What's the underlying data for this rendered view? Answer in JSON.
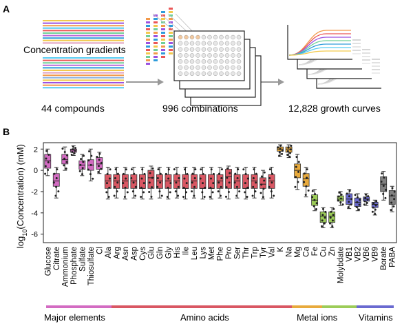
{
  "panel_a": {
    "letter": "A",
    "gradient_label": "Concentration gradients",
    "steps": [
      "44 compounds",
      "996 combinations",
      "12,828 growth curves"
    ]
  },
  "panel_b": {
    "letter": "B",
    "ylabel_main": "log",
    "ylabel_sub": "10",
    "ylabel_rest": "(Concentration) (mM)"
  },
  "colors": {
    "major": "#d36bc2",
    "amino": "#d95763",
    "metal_orange": "#e8aa3c",
    "metal_green": "#9ccc58",
    "vitamin": "#6a6ad0",
    "other": "#808080"
  },
  "groups": [
    {
      "label": "Major elements",
      "color": "#d36bc2"
    },
    {
      "label": "Amino acids",
      "color": "#d95763"
    },
    {
      "label": "Metal ions",
      "color": "#e8aa3c"
    },
    {
      "label": "Vitamins",
      "color": "#6a6ad0"
    }
  ],
  "chart_data": {
    "type": "box",
    "ylabel": "log10(Concentration) (mM)",
    "ylim": [
      -6.8,
      2.6
    ],
    "yticks": [
      -6,
      -4,
      -2,
      0,
      2
    ],
    "series": [
      {
        "name": "Glucose",
        "q1": 0.2,
        "median": 0.9,
        "q3": 1.5,
        "wl": -0.5,
        "wh": 2.0,
        "color": "#d36bc2"
      },
      {
        "name": "Citrate",
        "q1": -1.5,
        "median": -1.0,
        "q3": -0.3,
        "wl": -2.6,
        "wh": 0.3,
        "color": "#d36bc2"
      },
      {
        "name": "Ammonium",
        "q1": 0.6,
        "median": 1.0,
        "q3": 1.5,
        "wl": 0.0,
        "wh": 2.2,
        "color": "#d36bc2"
      },
      {
        "name": "Phosphate",
        "q1": 1.7,
        "median": 1.9,
        "q3": 2.0,
        "wl": 1.4,
        "wh": 2.3,
        "color": "#d36bc2"
      },
      {
        "name": "Sulfate",
        "q1": 0.1,
        "median": 0.5,
        "q3": 0.9,
        "wl": -0.5,
        "wh": 1.5,
        "color": "#d36bc2"
      },
      {
        "name": "Thiosulfate",
        "q1": 0.0,
        "median": 0.5,
        "q3": 1.0,
        "wl": -1.0,
        "wh": 2.0,
        "color": "#d36bc2"
      },
      {
        "name": "Cl",
        "q1": 0.1,
        "median": 0.6,
        "q3": 1.2,
        "wl": -0.3,
        "wh": 1.7,
        "color": "#d36bc2"
      },
      {
        "name": "Ala",
        "q1": -1.7,
        "median": -1.0,
        "q3": -0.4,
        "wl": -2.7,
        "wh": 0.3,
        "color": "#d95763"
      },
      {
        "name": "Arg",
        "q1": -1.7,
        "median": -1.0,
        "q3": -0.4,
        "wl": -2.6,
        "wh": 0.3,
        "color": "#d95763"
      },
      {
        "name": "Asn",
        "q1": -1.7,
        "median": -1.0,
        "q3": -0.4,
        "wl": -2.7,
        "wh": 0.3,
        "color": "#d95763"
      },
      {
        "name": "Asp",
        "q1": -1.7,
        "median": -1.0,
        "q3": -0.4,
        "wl": -2.6,
        "wh": 0.3,
        "color": "#d95763"
      },
      {
        "name": "Cys",
        "q1": -1.7,
        "median": -1.7,
        "q3": -0.4,
        "wl": -2.7,
        "wh": 0.3,
        "color": "#d95763"
      },
      {
        "name": "Glu",
        "q1": -1.7,
        "median": -0.7,
        "q3": 0.0,
        "wl": -2.7,
        "wh": 0.4,
        "color": "#d95763"
      },
      {
        "name": "Gln",
        "q1": -1.7,
        "median": -1.0,
        "q3": -0.4,
        "wl": -2.6,
        "wh": 0.3,
        "color": "#d95763"
      },
      {
        "name": "Gly",
        "q1": -1.7,
        "median": -1.0,
        "q3": -0.4,
        "wl": -2.7,
        "wh": 0.3,
        "color": "#d95763"
      },
      {
        "name": "His",
        "q1": -1.7,
        "median": -1.0,
        "q3": -0.4,
        "wl": -2.6,
        "wh": 0.3,
        "color": "#d95763"
      },
      {
        "name": "Ile",
        "q1": -1.7,
        "median": -1.7,
        "q3": -0.4,
        "wl": -2.7,
        "wh": 0.3,
        "color": "#d95763"
      },
      {
        "name": "Leu",
        "q1": -1.7,
        "median": -1.0,
        "q3": -0.4,
        "wl": -2.6,
        "wh": 0.3,
        "color": "#d95763"
      },
      {
        "name": "Lys",
        "q1": -1.7,
        "median": -1.7,
        "q3": -0.4,
        "wl": -2.7,
        "wh": 0.3,
        "color": "#d95763"
      },
      {
        "name": "Met",
        "q1": -1.7,
        "median": -1.7,
        "q3": -0.4,
        "wl": -2.7,
        "wh": 0.3,
        "color": "#d95763"
      },
      {
        "name": "Phe",
        "q1": -1.7,
        "median": -1.0,
        "q3": -0.4,
        "wl": -2.6,
        "wh": 0.3,
        "color": "#d95763"
      },
      {
        "name": "Pro",
        "q1": -1.7,
        "median": -0.6,
        "q3": 0.1,
        "wl": -2.7,
        "wh": 0.4,
        "color": "#d95763"
      },
      {
        "name": "Ser",
        "q1": -1.7,
        "median": -1.0,
        "q3": -0.4,
        "wl": -2.6,
        "wh": 0.3,
        "color": "#d95763"
      },
      {
        "name": "Thr",
        "q1": -1.7,
        "median": -1.7,
        "q3": -0.4,
        "wl": -2.7,
        "wh": 0.3,
        "color": "#d95763"
      },
      {
        "name": "Trp",
        "q1": -1.7,
        "median": -1.0,
        "q3": -0.4,
        "wl": -2.6,
        "wh": 0.3,
        "color": "#d95763"
      },
      {
        "name": "Tyr",
        "q1": -1.7,
        "median": -1.3,
        "q3": -0.7,
        "wl": -2.7,
        "wh": 0.0,
        "color": "#d95763"
      },
      {
        "name": "Val",
        "q1": -1.7,
        "median": -1.0,
        "q3": -0.4,
        "wl": -2.6,
        "wh": 0.3,
        "color": "#d95763"
      },
      {
        "name": "K",
        "q1": 1.8,
        "median": 2.0,
        "q3": 2.2,
        "wl": 1.3,
        "wh": 2.4,
        "color": "#e8aa3c"
      },
      {
        "name": "Na",
        "q1": 1.7,
        "median": 2.0,
        "q3": 2.2,
        "wl": 1.2,
        "wh": 2.4,
        "color": "#e8aa3c"
      },
      {
        "name": "Mg",
        "q1": -0.7,
        "median": 0.0,
        "q3": 0.6,
        "wl": -1.8,
        "wh": 1.5,
        "color": "#e8aa3c"
      },
      {
        "name": "Ca",
        "q1": -1.5,
        "median": -0.8,
        "q3": -0.3,
        "wl": -2.5,
        "wh": 0.3,
        "color": "#e8aa3c"
      },
      {
        "name": "Fe",
        "q1": -3.3,
        "median": -2.8,
        "q3": -2.3,
        "wl": -3.8,
        "wh": -1.8,
        "color": "#9ccc58"
      },
      {
        "name": "Cu",
        "q1": -4.9,
        "median": -4.3,
        "q3": -3.9,
        "wl": -5.4,
        "wh": -3.5,
        "color": "#9ccc58"
      },
      {
        "name": "Zn",
        "q1": -4.9,
        "median": -4.3,
        "q3": -3.9,
        "wl": -5.4,
        "wh": -3.5,
        "color": "#9ccc58"
      },
      {
        "name": "Molybdate",
        "q1": -2.9,
        "median": -2.7,
        "q3": -2.4,
        "wl": -3.3,
        "wh": -2.0,
        "color": "#9ccc58"
      },
      {
        "name": "VB1",
        "q1": -3.2,
        "median": -2.7,
        "q3": -2.2,
        "wl": -3.6,
        "wh": -1.8,
        "color": "#6a6ad0"
      },
      {
        "name": "VB2",
        "q1": -3.4,
        "median": -3.0,
        "q3": -2.6,
        "wl": -3.8,
        "wh": -2.2,
        "color": "#6a6ad0"
      },
      {
        "name": "VB6",
        "q1": -2.9,
        "median": -2.7,
        "q3": -2.5,
        "wl": -3.3,
        "wh": -2.2,
        "color": "#6a6ad0"
      },
      {
        "name": "VB9",
        "q1": -3.5,
        "median": -3.2,
        "q3": -3.0,
        "wl": -4.2,
        "wh": -2.8,
        "color": "#6a6ad0"
      },
      {
        "name": "Borate",
        "q1": -2.0,
        "median": -1.3,
        "q3": -0.6,
        "wl": -2.8,
        "wh": -0.1,
        "color": "#808080"
      },
      {
        "name": "PABA",
        "q1": -3.2,
        "median": -2.4,
        "q3": -1.9,
        "wl": -3.9,
        "wh": -1.5,
        "color": "#808080"
      }
    ]
  }
}
